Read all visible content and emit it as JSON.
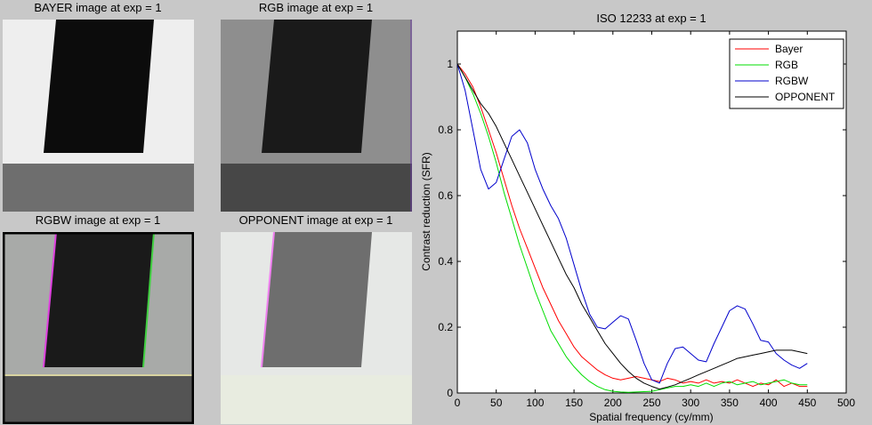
{
  "panels": {
    "bayer_title": "BAYER image at exp = 1",
    "rgb_title": "RGB image at exp = 1",
    "rgbw_title": "RGBW image at exp = 1",
    "opponent_title": "OPPONENT image at exp = 1"
  },
  "chart_data": {
    "type": "line",
    "title": "ISO 12233 at exp = 1",
    "xlabel": "Spatial frequency (cy/mm)",
    "ylabel": "Contrast reduction (SFR)",
    "xlim": [
      0,
      500
    ],
    "ylim": [
      0,
      1.1
    ],
    "xticks": [
      0,
      50,
      100,
      150,
      200,
      250,
      300,
      350,
      400,
      450,
      500
    ],
    "yticks": [
      0,
      0.2,
      0.4,
      0.6,
      0.8,
      1
    ],
    "ytick_labels": [
      "0",
      "0.2",
      "0.4",
      "0.6",
      "0.8",
      "1"
    ],
    "grid": false,
    "legend_position": "top-right",
    "series": [
      {
        "name": "Bayer",
        "color": "#ff0000",
        "x": [
          0,
          10,
          20,
          30,
          40,
          50,
          60,
          70,
          80,
          90,
          100,
          110,
          120,
          130,
          140,
          150,
          160,
          170,
          180,
          190,
          200,
          210,
          220,
          230,
          240,
          250,
          260,
          270,
          280,
          290,
          300,
          310,
          320,
          330,
          340,
          350,
          360,
          370,
          380,
          390,
          400,
          410,
          420,
          430,
          440,
          450
        ],
        "y": [
          1.0,
          0.97,
          0.93,
          0.87,
          0.8,
          0.73,
          0.65,
          0.57,
          0.5,
          0.44,
          0.38,
          0.32,
          0.27,
          0.22,
          0.18,
          0.14,
          0.11,
          0.09,
          0.07,
          0.055,
          0.045,
          0.04,
          0.045,
          0.05,
          0.045,
          0.04,
          0.035,
          0.045,
          0.04,
          0.03,
          0.035,
          0.03,
          0.04,
          0.03,
          0.035,
          0.03,
          0.04,
          0.03,
          0.02,
          0.03,
          0.025,
          0.04,
          0.02,
          0.03,
          0.02,
          0.02
        ]
      },
      {
        "name": "RGB",
        "color": "#00dd00",
        "x": [
          0,
          10,
          20,
          30,
          40,
          50,
          60,
          70,
          80,
          90,
          100,
          110,
          120,
          130,
          140,
          150,
          160,
          170,
          180,
          190,
          200,
          210,
          220,
          230,
          240,
          250,
          260,
          270,
          280,
          290,
          300,
          310,
          320,
          330,
          340,
          350,
          360,
          370,
          380,
          390,
          400,
          410,
          420,
          430,
          440,
          450
        ],
        "y": [
          1.0,
          0.96,
          0.91,
          0.85,
          0.78,
          0.7,
          0.61,
          0.53,
          0.45,
          0.38,
          0.31,
          0.25,
          0.19,
          0.15,
          0.11,
          0.08,
          0.055,
          0.035,
          0.02,
          0.01,
          0.005,
          0.003,
          0.002,
          0.003,
          0.004,
          0.005,
          0.01,
          0.015,
          0.02,
          0.02,
          0.025,
          0.02,
          0.03,
          0.02,
          0.03,
          0.035,
          0.025,
          0.03,
          0.035,
          0.025,
          0.03,
          0.035,
          0.04,
          0.03,
          0.025,
          0.025
        ]
      },
      {
        "name": "RGBW",
        "color": "#0000cc",
        "x": [
          0,
          10,
          20,
          30,
          40,
          50,
          60,
          70,
          80,
          90,
          100,
          110,
          120,
          130,
          140,
          150,
          160,
          170,
          180,
          190,
          200,
          210,
          220,
          230,
          240,
          250,
          260,
          270,
          280,
          290,
          300,
          310,
          320,
          330,
          340,
          350,
          360,
          370,
          380,
          390,
          400,
          410,
          420,
          430,
          440,
          450
        ],
        "y": [
          1.0,
          0.92,
          0.8,
          0.68,
          0.62,
          0.64,
          0.71,
          0.78,
          0.8,
          0.76,
          0.68,
          0.62,
          0.57,
          0.53,
          0.47,
          0.39,
          0.31,
          0.24,
          0.2,
          0.195,
          0.215,
          0.235,
          0.225,
          0.16,
          0.09,
          0.04,
          0.03,
          0.09,
          0.135,
          0.14,
          0.12,
          0.1,
          0.095,
          0.15,
          0.2,
          0.25,
          0.265,
          0.255,
          0.21,
          0.16,
          0.155,
          0.12,
          0.1,
          0.085,
          0.075,
          0.09
        ]
      },
      {
        "name": "OPPONENT",
        "color": "#000000",
        "x": [
          0,
          10,
          20,
          30,
          40,
          50,
          60,
          70,
          80,
          90,
          100,
          110,
          120,
          130,
          140,
          150,
          160,
          170,
          180,
          190,
          200,
          210,
          220,
          230,
          240,
          250,
          260,
          270,
          280,
          290,
          300,
          310,
          320,
          330,
          340,
          350,
          360,
          370,
          380,
          390,
          400,
          410,
          420,
          430,
          440,
          450
        ],
        "y": [
          1.0,
          0.96,
          0.92,
          0.88,
          0.85,
          0.81,
          0.76,
          0.71,
          0.66,
          0.61,
          0.56,
          0.51,
          0.46,
          0.41,
          0.36,
          0.32,
          0.27,
          0.23,
          0.19,
          0.15,
          0.12,
          0.09,
          0.065,
          0.045,
          0.03,
          0.02,
          0.012,
          0.018,
          0.025,
          0.035,
          0.045,
          0.055,
          0.065,
          0.075,
          0.085,
          0.095,
          0.105,
          0.11,
          0.115,
          0.12,
          0.125,
          0.13,
          0.13,
          0.13,
          0.125,
          0.12
        ]
      }
    ]
  }
}
